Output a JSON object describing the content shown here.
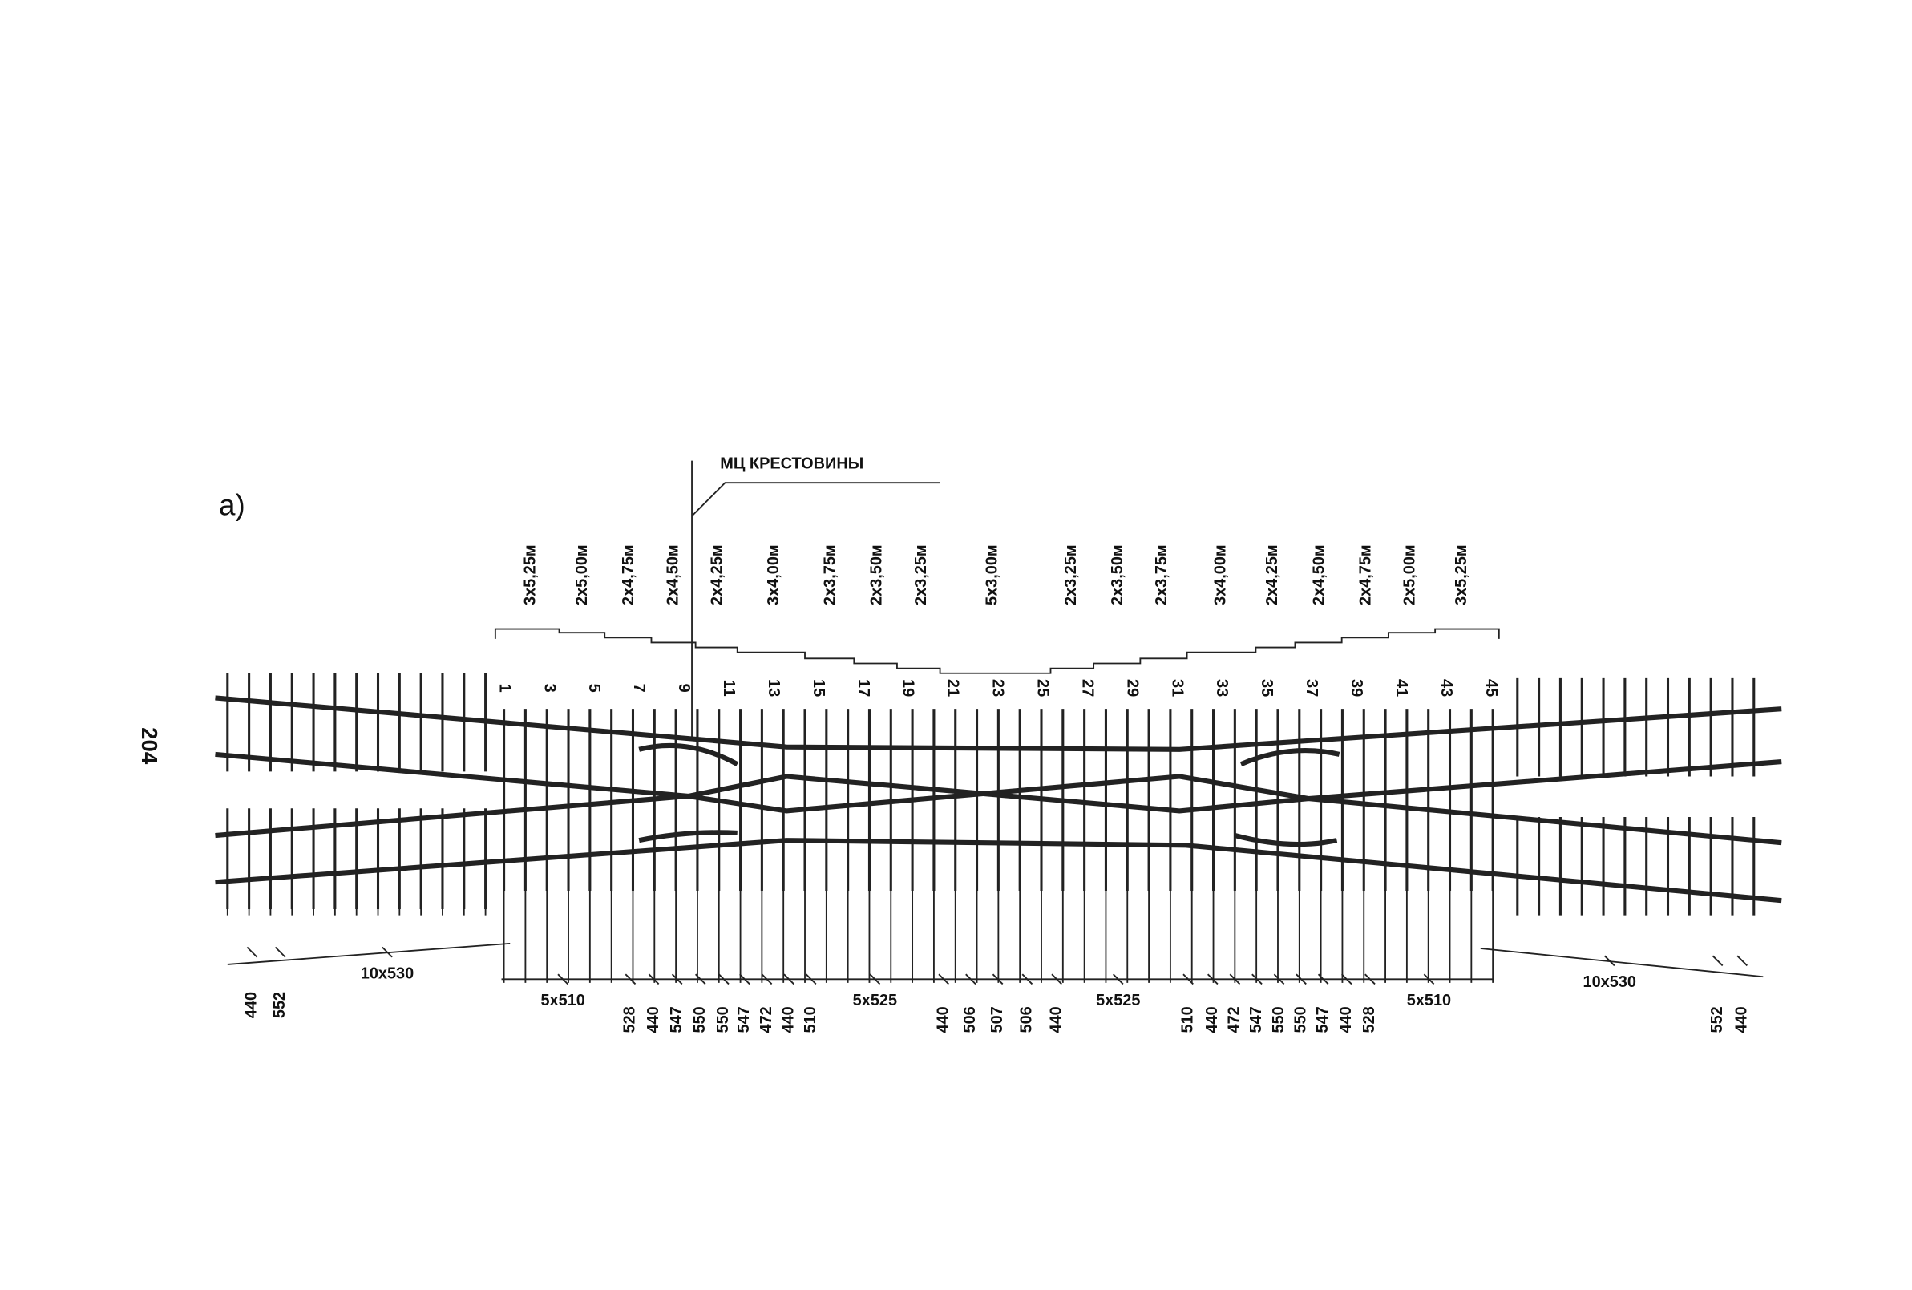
{
  "page_number": "204",
  "figure_label": "а)",
  "callout": "МЦ КРЕСТОВИНЫ",
  "segment_lengths": [
    "3х5,25м",
    "2х5,00м",
    "2х4,75м",
    "2х4,50м",
    "2х4,25м",
    "3х4,00м",
    "2х3,75м",
    "2х3,50м",
    "2х3,25м",
    "5х3,00м",
    "2х3,25м",
    "2х3,50м",
    "2х3,75м",
    "3х4,00м",
    "2х4,25м",
    "2х4,50м",
    "2х4,75м",
    "2х5,00м",
    "3х5,25м"
  ],
  "tie_numbers": [
    "1",
    "3",
    "5",
    "7",
    "9",
    "11",
    "13",
    "15",
    "17",
    "19",
    "21",
    "23",
    "25",
    "27",
    "29",
    "31",
    "33",
    "35",
    "37",
    "39",
    "41",
    "43",
    "45"
  ],
  "dimensions": {
    "left": [
      "440",
      "552",
      "10х530"
    ],
    "center": [
      "5х510",
      "528",
      "440",
      "547",
      "550",
      "550",
      "547",
      "472",
      "440",
      "510",
      "5х525",
      "440",
      "506",
      "507",
      "506",
      "440",
      "5х525",
      "510",
      "440",
      "472",
      "547",
      "550",
      "550",
      "547",
      "440",
      "528",
      "5х510"
    ],
    "right": [
      "10х530",
      "552",
      "440"
    ]
  }
}
